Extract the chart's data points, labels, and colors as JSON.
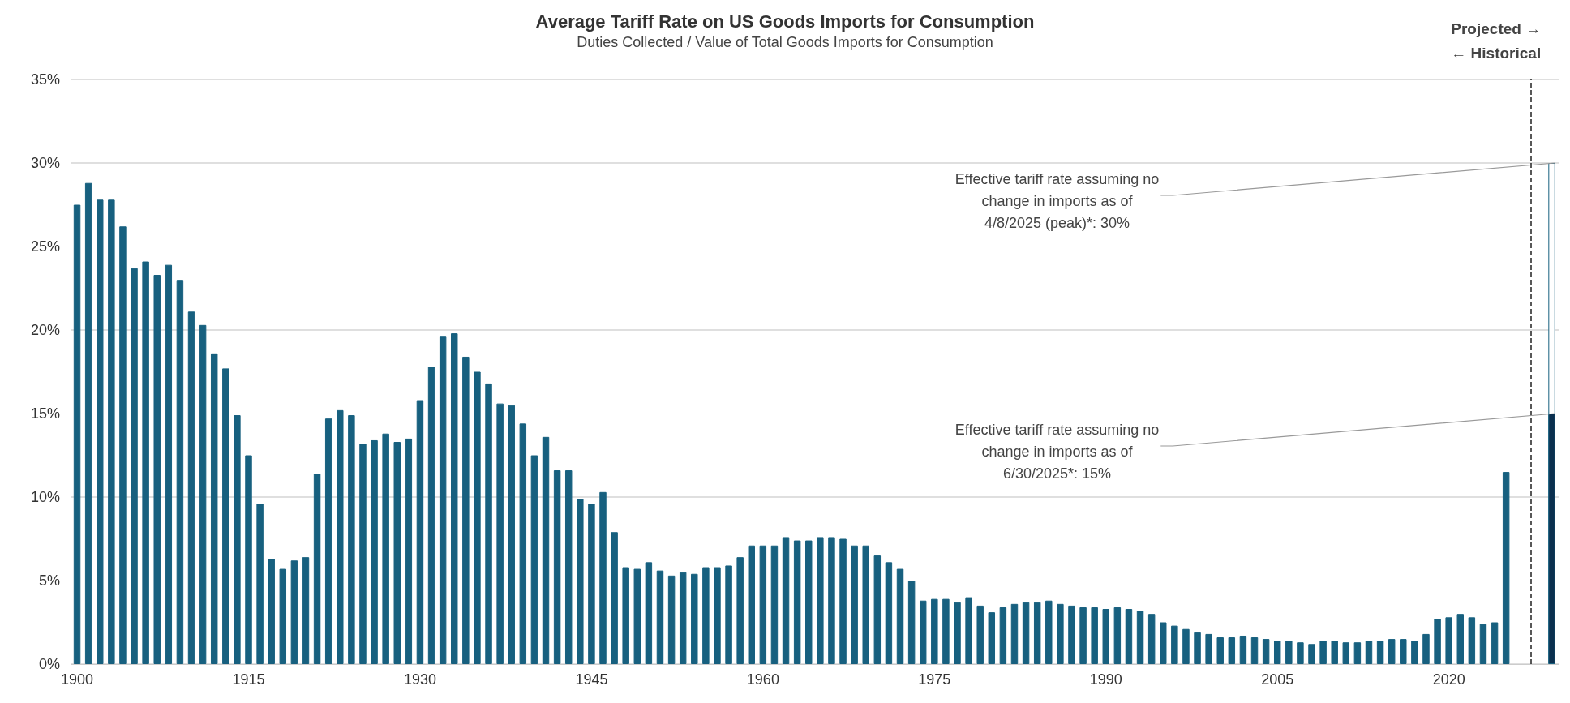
{
  "chart_data": {
    "type": "bar",
    "title": "Average Tariff Rate on US Goods Imports for Consumption",
    "subtitle": "Duties Collected / Value of Total Goods Imports for Consumption",
    "x": [
      1900,
      1901,
      1902,
      1903,
      1904,
      1905,
      1906,
      1907,
      1908,
      1909,
      1910,
      1911,
      1912,
      1913,
      1914,
      1915,
      1916,
      1917,
      1918,
      1919,
      1920,
      1921,
      1922,
      1923,
      1924,
      1925,
      1926,
      1927,
      1928,
      1929,
      1930,
      1931,
      1932,
      1933,
      1934,
      1935,
      1936,
      1937,
      1938,
      1939,
      1940,
      1941,
      1942,
      1943,
      1944,
      1945,
      1946,
      1947,
      1948,
      1949,
      1950,
      1951,
      1952,
      1953,
      1954,
      1955,
      1956,
      1957,
      1958,
      1959,
      1960,
      1961,
      1962,
      1963,
      1964,
      1965,
      1966,
      1967,
      1968,
      1969,
      1970,
      1971,
      1972,
      1973,
      1974,
      1975,
      1976,
      1977,
      1978,
      1979,
      1980,
      1981,
      1982,
      1983,
      1984,
      1985,
      1986,
      1987,
      1988,
      1989,
      1990,
      1991,
      1992,
      1993,
      1994,
      1995,
      1996,
      1997,
      1998,
      1999,
      2000,
      2001,
      2002,
      2003,
      2004,
      2005,
      2006,
      2007,
      2008,
      2009,
      2010,
      2011,
      2012,
      2013,
      2014,
      2015,
      2016,
      2017,
      2018,
      2019,
      2020,
      2021,
      2022,
      2023,
      2024,
      2025
    ],
    "series": [
      {
        "color": "#17607f",
        "values": [
          27.5,
          28.8,
          27.8,
          27.8,
          26.2,
          23.7,
          24.1,
          23.3,
          23.9,
          23.0,
          21.1,
          20.3,
          18.6,
          17.7,
          14.9,
          12.5,
          9.6,
          6.3,
          5.7,
          6.2,
          6.4,
          11.4,
          14.7,
          15.2,
          14.9,
          13.2,
          13.4,
          13.8,
          13.3,
          13.5,
          15.8,
          17.8,
          19.6,
          19.8,
          18.4,
          17.5,
          16.8,
          15.6,
          15.5,
          14.4,
          12.5,
          13.6,
          11.6,
          11.6,
          9.9,
          9.6,
          10.3,
          7.9,
          5.8,
          5.7,
          6.1,
          5.6,
          5.3,
          5.5,
          5.4,
          5.8,
          5.8,
          5.9,
          6.4,
          7.1,
          7.1,
          7.1,
          7.6,
          7.4,
          7.4,
          7.6,
          7.6,
          7.5,
          7.1,
          7.1,
          6.5,
          6.1,
          5.7,
          5.0,
          3.8,
          3.9,
          3.9,
          3.7,
          4.0,
          3.5,
          3.1,
          3.4,
          3.6,
          3.7,
          3.7,
          3.8,
          3.6,
          3.5,
          3.4,
          3.4,
          3.3,
          3.4,
          3.3,
          3.2,
          3.0,
          2.5,
          2.3,
          2.1,
          1.9,
          1.8,
          1.6,
          1.6,
          1.7,
          1.6,
          1.5,
          1.4,
          1.4,
          1.3,
          1.2,
          1.4,
          1.4,
          1.3,
          1.3,
          1.4,
          1.4,
          1.5,
          1.5,
          1.4,
          1.8,
          2.7,
          2.8,
          3.0,
          2.8,
          2.4,
          2.5,
          11.5
        ]
      },
      {
        "color": "#ffffff",
        "x": [
          2029
        ],
        "values": [
          30
        ]
      },
      {
        "color": "#0b2f4e",
        "x": [
          2029
        ],
        "values": [
          15
        ]
      }
    ],
    "xlim": [
      1899.5,
      2029.6
    ],
    "xticks": [
      1900,
      1915,
      1930,
      1945,
      1960,
      1975,
      1990,
      2005,
      2020
    ],
    "ylim": [
      0,
      35
    ],
    "yticks": [
      {
        "value": 0,
        "label": "0%"
      },
      {
        "value": 5,
        "label": "5%"
      },
      {
        "value": 10,
        "label": "10%"
      },
      {
        "value": 15,
        "label": "15%"
      },
      {
        "value": 20,
        "label": "20%"
      },
      {
        "value": 25,
        "label": "25%"
      },
      {
        "value": 30,
        "label": "30%"
      },
      {
        "value": 35,
        "label": "35%"
      }
    ],
    "grid": "y",
    "ref_lines": [
      {
        "axis": "x",
        "value": 2027.2,
        "label": "Projected →\n← Historical",
        "color": "#222222",
        "line_style": "dashed"
      }
    ],
    "annotations": [
      {
        "text": "Effective tariff rate assuming no\nchange in imports as of\n4/8/2025 (peak)*: 30%",
        "x": 2029,
        "y": 30
      },
      {
        "text": "Effective tariff rate assuming no\nchange in imports as of\n6/30/2025*: 15%",
        "x": 2029,
        "y": 15
      }
    ]
  }
}
